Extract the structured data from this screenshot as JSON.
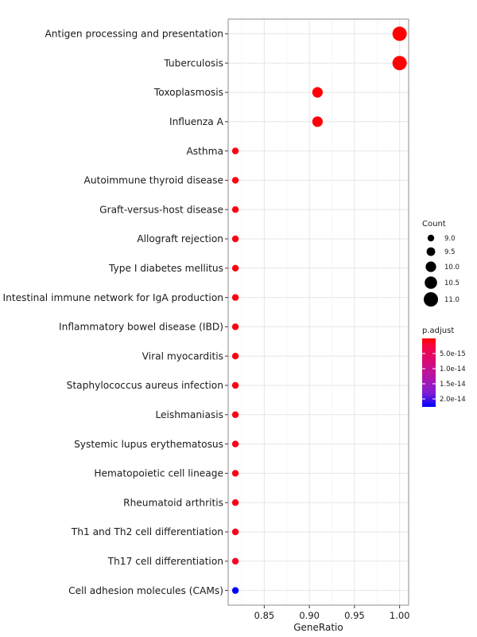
{
  "chart_data": {
    "type": "scatter",
    "subtype": "dot-plot",
    "xlabel": "GeneRatio",
    "ylabel": "",
    "title": "",
    "xlim": [
      0.81,
      1.01
    ],
    "x_ticks": [
      "0.85",
      "0.90",
      "0.95",
      "1.00"
    ],
    "x_tick_values": [
      0.85,
      0.9,
      0.95,
      1.0
    ],
    "grid": true,
    "legend_position": "right",
    "size_legend": {
      "title": "Count",
      "labels": [
        "9.0",
        "9.5",
        "10.0",
        "10.5",
        "11.0"
      ],
      "values": [
        9.0,
        9.5,
        10.0,
        10.5,
        11.0
      ]
    },
    "color_legend": {
      "title": "p.adjust",
      "labels": [
        "5.0e-15",
        "1.0e-14",
        "1.5e-14",
        "2.0e-14"
      ],
      "values": [
        5e-15,
        1e-14,
        1.5e-14,
        2e-14
      ],
      "low_color": "#ff0000",
      "high_color": "#0000ff"
    },
    "points": [
      {
        "term": "Antigen processing and presentation",
        "gene_ratio": 1.0,
        "count": 11,
        "p_adjust": 1e-16
      },
      {
        "term": "Tuberculosis",
        "gene_ratio": 1.0,
        "count": 11,
        "p_adjust": 1e-16
      },
      {
        "term": "Toxoplasmosis",
        "gene_ratio": 0.909,
        "count": 10,
        "p_adjust": 5e-16
      },
      {
        "term": "Influenza A",
        "gene_ratio": 0.909,
        "count": 10,
        "p_adjust": 5e-16
      },
      {
        "term": "Asthma",
        "gene_ratio": 0.818,
        "count": 9,
        "p_adjust": 1e-15
      },
      {
        "term": "Autoimmune thyroid disease",
        "gene_ratio": 0.818,
        "count": 9,
        "p_adjust": 1e-15
      },
      {
        "term": "Graft-versus-host disease",
        "gene_ratio": 0.818,
        "count": 9,
        "p_adjust": 1e-15
      },
      {
        "term": "Allograft rejection",
        "gene_ratio": 0.818,
        "count": 9,
        "p_adjust": 1e-15
      },
      {
        "term": "Type I diabetes mellitus",
        "gene_ratio": 0.818,
        "count": 9,
        "p_adjust": 1e-15
      },
      {
        "term": "Intestinal immune network for IgA production",
        "gene_ratio": 0.818,
        "count": 9,
        "p_adjust": 1e-15
      },
      {
        "term": "Inflammatory bowel disease (IBD)",
        "gene_ratio": 0.818,
        "count": 9,
        "p_adjust": 1e-15
      },
      {
        "term": "Viral myocarditis",
        "gene_ratio": 0.818,
        "count": 9,
        "p_adjust": 1e-15
      },
      {
        "term": "Staphylococcus aureus infection",
        "gene_ratio": 0.818,
        "count": 9,
        "p_adjust": 1e-15
      },
      {
        "term": "Leishmaniasis",
        "gene_ratio": 0.818,
        "count": 9,
        "p_adjust": 1.5e-15
      },
      {
        "term": "Systemic lupus erythematosus",
        "gene_ratio": 0.818,
        "count": 9,
        "p_adjust": 1.5e-15
      },
      {
        "term": "Hematopoietic cell lineage",
        "gene_ratio": 0.818,
        "count": 9,
        "p_adjust": 1.5e-15
      },
      {
        "term": "Rheumatoid arthritis",
        "gene_ratio": 0.818,
        "count": 9,
        "p_adjust": 1.5e-15
      },
      {
        "term": "Th1 and Th2 cell differentiation",
        "gene_ratio": 0.818,
        "count": 9,
        "p_adjust": 1.5e-15
      },
      {
        "term": "Th17 cell differentiation",
        "gene_ratio": 0.818,
        "count": 9,
        "p_adjust": 2e-15
      },
      {
        "term": "Cell adhesion molecules (CAMs)",
        "gene_ratio": 0.818,
        "count": 9,
        "p_adjust": 2.2e-14
      }
    ]
  }
}
